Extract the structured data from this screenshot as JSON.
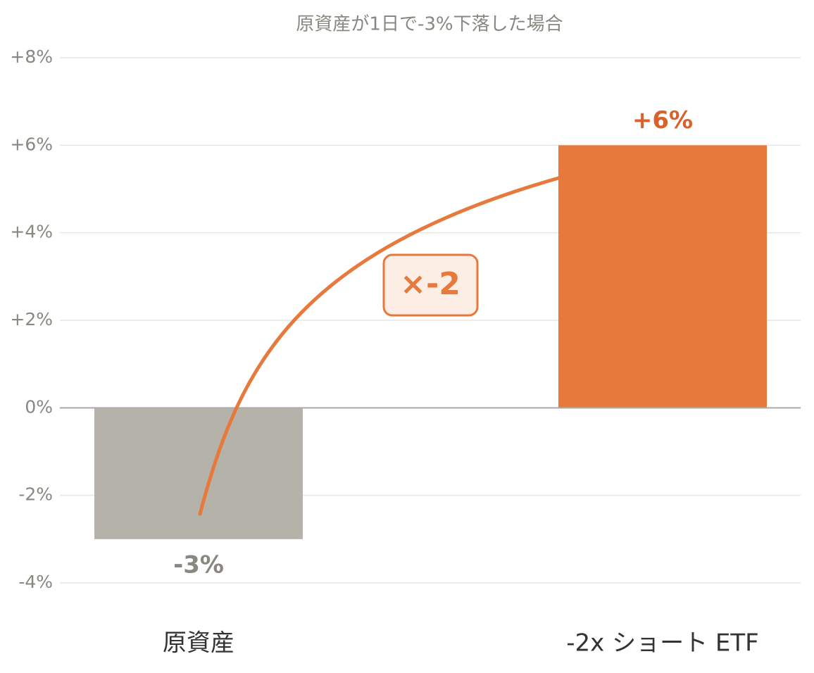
{
  "chart_data": {
    "type": "bar",
    "title": "原資産が1日で-3%下落した場合",
    "categories": [
      "原資産",
      "-2x ショート ETF"
    ],
    "values": [
      -3,
      6
    ],
    "value_labels": [
      "-3%",
      "+6%"
    ],
    "colors": [
      "#b5b2a9",
      "#e8793d"
    ],
    "label_colors": [
      "#8a8780",
      "#d9622b"
    ],
    "annotation": "×-2",
    "ylim": [
      -4,
      8
    ],
    "yticks": [
      {
        "value": -4,
        "label": "-4%"
      },
      {
        "value": -2,
        "label": "-2%"
      },
      {
        "value": 0,
        "label": "0%"
      },
      {
        "value": 2,
        "label": "+2%"
      },
      {
        "value": 4,
        "label": "+4%"
      },
      {
        "value": 6,
        "label": "+6%"
      },
      {
        "value": 8,
        "label": "+8%"
      }
    ],
    "grid": true
  }
}
